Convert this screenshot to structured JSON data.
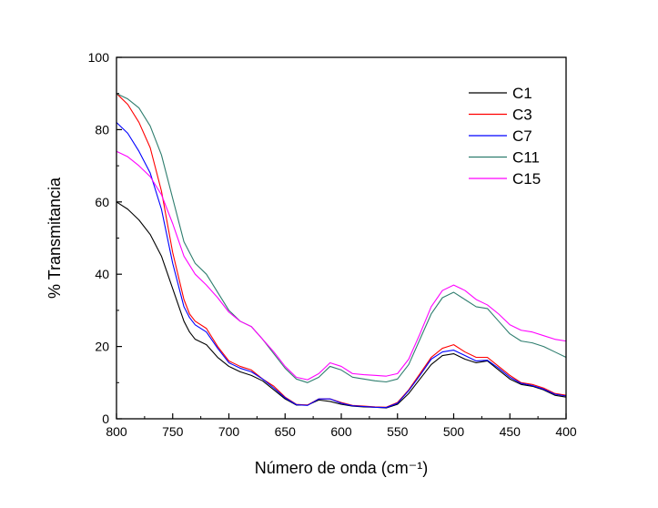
{
  "chart_data": {
    "type": "line",
    "title": "",
    "xlabel": "Número de onda (cm⁻¹)",
    "ylabel": "% Transmitancia",
    "xlim": [
      800,
      400
    ],
    "ylim": [
      0,
      100
    ],
    "x_ticks": [
      800,
      750,
      700,
      650,
      600,
      550,
      500,
      450,
      400
    ],
    "y_ticks": [
      0,
      20,
      40,
      60,
      80,
      100
    ],
    "grid": false,
    "legend_position": "top-right",
    "series": [
      {
        "name": "C1",
        "color": "#000000",
        "x": [
          800,
          790,
          780,
          770,
          760,
          750,
          740,
          735,
          730,
          720,
          710,
          700,
          690,
          680,
          670,
          660,
          650,
          640,
          630,
          620,
          610,
          600,
          590,
          580,
          570,
          560,
          550,
          540,
          530,
          520,
          510,
          500,
          490,
          480,
          470,
          460,
          450,
          440,
          430,
          420,
          410,
          400
        ],
        "y": [
          60,
          58,
          55,
          51,
          45,
          36,
          27,
          24,
          22,
          20.5,
          17,
          14.5,
          13,
          12,
          10.5,
          8,
          5.5,
          3.8,
          3.8,
          5.2,
          4.8,
          4,
          3.5,
          3.3,
          3.2,
          3,
          4,
          7,
          11,
          15,
          17.5,
          18,
          16.5,
          15.5,
          16,
          13.5,
          11,
          9.5,
          9,
          8,
          6.5,
          6
        ]
      },
      {
        "name": "C3",
        "color": "#ff0000",
        "x": [
          800,
          790,
          780,
          770,
          760,
          750,
          740,
          735,
          730,
          720,
          710,
          700,
          690,
          680,
          670,
          660,
          650,
          640,
          630,
          620,
          610,
          600,
          590,
          580,
          570,
          560,
          550,
          540,
          530,
          520,
          510,
          500,
          490,
          480,
          470,
          460,
          450,
          440,
          430,
          420,
          410,
          400
        ],
        "y": [
          90,
          87,
          82,
          75,
          63,
          46,
          33,
          29,
          27,
          25,
          20,
          16,
          14.5,
          13.5,
          11,
          9,
          6,
          4,
          3.8,
          5.5,
          5.5,
          4.5,
          3.7,
          3.5,
          3.3,
          3.2,
          4.5,
          8,
          12.5,
          17,
          19.5,
          20.5,
          18.5,
          17,
          17,
          14.5,
          12,
          10,
          9.5,
          8.5,
          7,
          6.5
        ]
      },
      {
        "name": "C7",
        "color": "#0000ff",
        "x": [
          800,
          790,
          780,
          770,
          760,
          750,
          740,
          735,
          730,
          720,
          710,
          700,
          690,
          680,
          670,
          660,
          650,
          640,
          630,
          620,
          610,
          600,
          590,
          580,
          570,
          560,
          550,
          540,
          530,
          520,
          510,
          500,
          490,
          480,
          470,
          460,
          450,
          440,
          430,
          420,
          410,
          400
        ],
        "y": [
          82,
          79,
          74,
          68,
          58,
          43,
          31,
          28,
          26,
          24,
          19.5,
          15.5,
          14,
          13,
          11,
          8.5,
          5.8,
          3.9,
          3.7,
          5.5,
          5.5,
          4.3,
          3.6,
          3.4,
          3.2,
          3.1,
          4.3,
          7.8,
          12,
          16.5,
          18.5,
          19,
          17.5,
          16,
          16.2,
          14,
          11.5,
          9.8,
          9.2,
          8.2,
          6.8,
          6.3
        ]
      },
      {
        "name": "C11",
        "color": "#2e7d6e",
        "x": [
          800,
          790,
          780,
          770,
          760,
          750,
          740,
          730,
          720,
          710,
          700,
          690,
          680,
          670,
          660,
          650,
          640,
          630,
          620,
          610,
          600,
          590,
          580,
          570,
          560,
          550,
          540,
          530,
          520,
          510,
          500,
          490,
          480,
          470,
          460,
          450,
          440,
          430,
          420,
          410,
          400
        ],
        "y": [
          90,
          88.5,
          86,
          81,
          73,
          61,
          49,
          43,
          40,
          35,
          30,
          27,
          25.5,
          22,
          18,
          14,
          11,
          10,
          11.5,
          14.5,
          13.5,
          11.5,
          11,
          10.5,
          10.2,
          11,
          15,
          22,
          29,
          33.5,
          35,
          33,
          31,
          30.5,
          27,
          23.5,
          21.5,
          21,
          20,
          18.5,
          17
        ]
      },
      {
        "name": "C15",
        "color": "#ff00ff",
        "x": [
          800,
          790,
          780,
          770,
          760,
          750,
          740,
          730,
          720,
          710,
          700,
          690,
          680,
          670,
          660,
          650,
          640,
          630,
          620,
          610,
          600,
          590,
          580,
          570,
          560,
          550,
          540,
          530,
          520,
          510,
          500,
          490,
          480,
          470,
          460,
          450,
          440,
          430,
          420,
          410,
          400
        ],
        "y": [
          74,
          72.5,
          70,
          67,
          62,
          54,
          45,
          40,
          37,
          33.5,
          29.5,
          27,
          25.5,
          22,
          18.5,
          14.5,
          11.5,
          10.8,
          12.5,
          15.5,
          14.5,
          12.5,
          12.2,
          12,
          11.8,
          12.5,
          16.5,
          23.5,
          31,
          35.5,
          37,
          35.5,
          33,
          31.5,
          29,
          26,
          24.5,
          24,
          23,
          22,
          21.5
        ]
      }
    ]
  }
}
